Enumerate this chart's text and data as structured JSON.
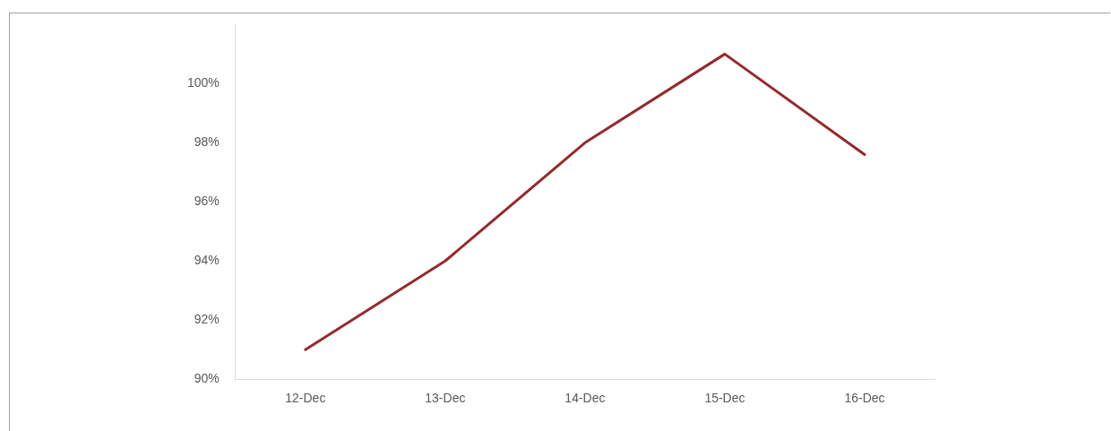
{
  "chart_data": {
    "type": "line",
    "categories": [
      "12-Dec",
      "13-Dec",
      "14-Dec",
      "15-Dec",
      "16-Dec"
    ],
    "series": [
      {
        "color": "#922b2e",
        "values": [
          91,
          94,
          98,
          101,
          97.6
        ]
      }
    ],
    "yticks": [
      {
        "value": 90,
        "label": "90%"
      },
      {
        "value": 92,
        "label": "92%"
      },
      {
        "value": 94,
        "label": "94%"
      },
      {
        "value": 96,
        "label": "96%"
      },
      {
        "value": 98,
        "label": "98%"
      },
      {
        "value": 100,
        "label": "100%"
      }
    ],
    "ylim": [
      90,
      102
    ],
    "grid": false,
    "legend": false,
    "marker": "none",
    "line_style": "solid"
  }
}
